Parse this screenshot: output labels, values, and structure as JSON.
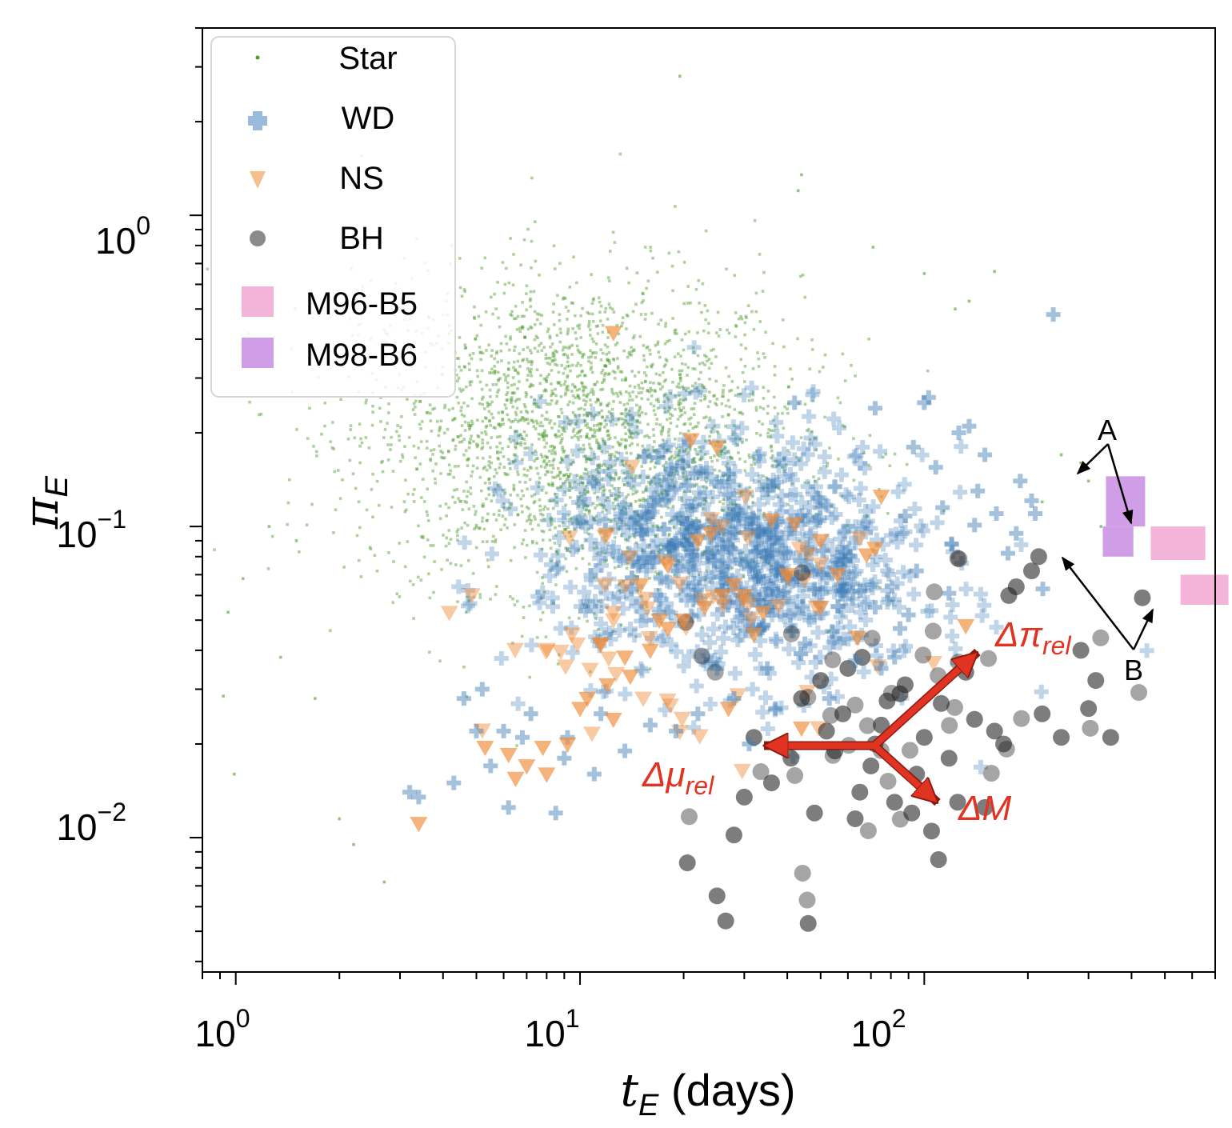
{
  "chart_data": {
    "type": "scatter",
    "xlabel_main": "t",
    "xlabel_sub": "E",
    "xlabel_unit": " (days)",
    "ylabel_main": "π",
    "ylabel_sub": "E",
    "x_scale": "log",
    "y_scale": "log",
    "xlim": [
      0.8,
      700
    ],
    "ylim": [
      0.0037,
      4.0
    ],
    "x_ticks": [
      {
        "base": "10",
        "exp": "0",
        "value": 1
      },
      {
        "base": "10",
        "exp": "1",
        "value": 10
      },
      {
        "base": "10",
        "exp": "2",
        "value": 100
      }
    ],
    "y_ticks": [
      {
        "base": "10",
        "exp": "0",
        "value": 1
      },
      {
        "base": "10",
        "exp": "−1",
        "value": 0.1
      },
      {
        "base": "10",
        "exp": "−2",
        "value": 0.01
      }
    ],
    "legend": {
      "position": "upper-left",
      "entries": [
        {
          "label": "Star",
          "marker": "point",
          "color": "#4c9a2a"
        },
        {
          "label": "WD",
          "marker": "plus",
          "color": "#9ab9dc"
        },
        {
          "label": "NS",
          "marker": "triangle-down",
          "color": "#f5c08c"
        },
        {
          "label": "BH",
          "marker": "circle",
          "color": "#8a8a8a"
        },
        {
          "label": "M96-B5",
          "marker": "square",
          "color": "#f4b3d9"
        },
        {
          "label": "M98-B6",
          "marker": "square",
          "color": "#cf9ee6"
        }
      ]
    },
    "populations": [
      {
        "name": "Star",
        "color": "#4c9a2a",
        "center_tE": 10,
        "center_piE": 0.2,
        "sigma_log_tE": 0.32,
        "sigma_log_piE": 0.25,
        "approx_count": 6000
      },
      {
        "name": "WD",
        "color": "#3a78b5",
        "center_tE": 28,
        "center_piE": 0.08,
        "sigma_log_tE": 0.28,
        "sigma_log_piE": 0.2,
        "approx_count": 1600
      },
      {
        "name": "NS",
        "color": "#f08a36",
        "center_tE": 20,
        "center_piE": 0.05,
        "sigma_log_tE": 0.3,
        "sigma_log_piE": 0.2,
        "approx_count": 150
      },
      {
        "name": "BH",
        "color": "#202020",
        "center_tE": 80,
        "center_piE": 0.022,
        "sigma_log_tE": 0.28,
        "sigma_log_piE": 0.25,
        "approx_count": 200
      }
    ],
    "series": [
      {
        "name": "BH",
        "points": [
          [
            20.5,
            0.0083
          ],
          [
            25,
            0.0065
          ],
          [
            26.5,
            0.0054
          ],
          [
            46,
            0.0053
          ],
          [
            28,
            0.0102
          ],
          [
            30,
            0.0135
          ],
          [
            32,
            0.021
          ],
          [
            36,
            0.015
          ],
          [
            41,
            0.018
          ],
          [
            44,
            0.028
          ],
          [
            48,
            0.012
          ],
          [
            50,
            0.032
          ],
          [
            55,
            0.019
          ],
          [
            58,
            0.025
          ],
          [
            63,
            0.0115
          ],
          [
            66,
            0.038
          ],
          [
            70,
            0.017
          ],
          [
            75,
            0.023
          ],
          [
            78,
            0.0275
          ],
          [
            82,
            0.013
          ],
          [
            88,
            0.031
          ],
          [
            95,
            0.016
          ],
          [
            100,
            0.021
          ],
          [
            105,
            0.0105
          ],
          [
            110,
            0.0085
          ],
          [
            112,
            0.027
          ],
          [
            118,
            0.018
          ],
          [
            125,
            0.013
          ],
          [
            132,
            0.034
          ],
          [
            140,
            0.024
          ],
          [
            150,
            0.0125
          ],
          [
            160,
            0.022
          ],
          [
            170,
            0.02
          ],
          [
            176,
            0.06
          ],
          [
            185,
            0.064
          ],
          [
            205,
            0.072
          ],
          [
            215,
            0.08
          ],
          [
            220,
            0.025
          ],
          [
            250,
            0.021
          ],
          [
            285,
            0.04
          ],
          [
            300,
            0.026
          ],
          [
            315,
            0.032
          ],
          [
            348,
            0.021
          ],
          [
            430,
            0.059
          ],
          [
            60,
            0.035
          ],
          [
            85,
            0.029
          ],
          [
            72,
            0.02
          ],
          [
            92,
            0.012
          ],
          [
            65,
            0.014
          ],
          [
            52,
            0.022
          ]
        ]
      },
      {
        "name": "WD",
        "points": [
          [
            3.2,
            0.014
          ],
          [
            3.4,
            0.0135
          ],
          [
            4.3,
            0.015
          ],
          [
            5.0,
            0.022
          ],
          [
            5.5,
            0.017
          ],
          [
            6.2,
            0.0125
          ],
          [
            8.5,
            0.012
          ],
          [
            6.8,
            0.021
          ],
          [
            9.0,
            0.018
          ],
          [
            11.5,
            0.025
          ],
          [
            13.5,
            0.019
          ],
          [
            16,
            0.023
          ],
          [
            19,
            0.022
          ],
          [
            22,
            0.025
          ],
          [
            31,
            0.02
          ],
          [
            37,
            0.026
          ],
          [
            45,
            0.042
          ],
          [
            54,
            0.046
          ],
          [
            63,
            0.037
          ],
          [
            72,
            0.055
          ],
          [
            82,
            0.038
          ],
          [
            90,
            0.052
          ],
          [
            93,
            0.18
          ],
          [
            100,
            0.25
          ],
          [
            108,
            0.155
          ],
          [
            113,
            0.115
          ],
          [
            120,
            0.088
          ],
          [
            126,
            0.2
          ],
          [
            135,
            0.21
          ],
          [
            143,
            0.13
          ],
          [
            150,
            0.17
          ],
          [
            162,
            0.11
          ],
          [
            175,
            0.082
          ],
          [
            185,
            0.095
          ],
          [
            190,
            0.14
          ],
          [
            210,
            0.11
          ],
          [
            221,
            0.063
          ],
          [
            237,
            0.48
          ],
          [
            205,
            0.121
          ],
          [
            140,
            0.101
          ],
          [
            118,
            0.061
          ],
          [
            85,
            0.047
          ],
          [
            95,
            0.072
          ],
          [
            75,
            0.035
          ],
          [
            65,
            0.062
          ],
          [
            48,
            0.063
          ],
          [
            42,
            0.25
          ],
          [
            72,
            0.24
          ],
          [
            103,
            0.26
          ],
          [
            35,
            0.035
          ],
          [
            28,
            0.028
          ],
          [
            25,
            0.035
          ],
          [
            7.2,
            0.025
          ],
          [
            9.2,
            0.021
          ],
          [
            11,
            0.016
          ],
          [
            4.6,
            0.028
          ],
          [
            5.2,
            0.03
          ],
          [
            6.0,
            0.022
          ],
          [
            53,
            0.028
          ],
          [
            88,
            0.108
          ]
        ]
      },
      {
        "name": "NS",
        "points": [
          [
            3.4,
            0.0111
          ],
          [
            5.3,
            0.0195
          ],
          [
            6.2,
            0.0185
          ],
          [
            6.5,
            0.0155
          ],
          [
            7.0,
            0.017
          ],
          [
            7.8,
            0.0195
          ],
          [
            8.0,
            0.016
          ],
          [
            9.2,
            0.02
          ],
          [
            10,
            0.026
          ],
          [
            10.5,
            0.028
          ],
          [
            11.5,
            0.042
          ],
          [
            12,
            0.031
          ],
          [
            12.5,
            0.024
          ],
          [
            14,
            0.033
          ],
          [
            16,
            0.04
          ],
          [
            18,
            0.047
          ],
          [
            20,
            0.05
          ],
          [
            21,
            0.19
          ],
          [
            23,
            0.055
          ],
          [
            25,
            0.18
          ],
          [
            27,
            0.026
          ],
          [
            28,
            0.065
          ],
          [
            30,
            0.06
          ],
          [
            34,
            0.053
          ],
          [
            36,
            0.105
          ],
          [
            40,
            0.07
          ],
          [
            44,
            0.0225
          ],
          [
            50,
            0.055
          ],
          [
            56,
            0.07
          ],
          [
            64,
            0.044
          ],
          [
            68,
            0.081
          ],
          [
            72,
            0.085
          ],
          [
            75,
            0.125
          ],
          [
            12.5,
            0.42
          ],
          [
            18,
            0.075
          ],
          [
            22,
            0.09
          ],
          [
            26,
            0.06
          ],
          [
            15,
            0.065
          ],
          [
            17,
            0.05
          ],
          [
            13.5,
            0.038
          ],
          [
            132,
            0.048
          ],
          [
            50,
            0.09
          ],
          [
            42,
            0.102
          ],
          [
            24,
            0.095
          ],
          [
            32,
            0.045
          ]
        ]
      },
      {
        "name": "Star",
        "points": [
          [
            0.95,
            0.053
          ],
          [
            0.92,
            0.0285
          ],
          [
            0.99,
            0.016
          ],
          [
            1.35,
            0.038
          ],
          [
            1.7,
            0.028
          ],
          [
            2.2,
            0.0095
          ],
          [
            2.7,
            0.0072
          ],
          [
            1.05,
            0.068
          ],
          [
            19.5,
            2.8
          ],
          [
            44,
            1.35
          ],
          [
            43,
            1.2
          ],
          [
            71,
            0.79
          ],
          [
            100,
            0.65
          ],
          [
            123,
            0.5
          ],
          [
            135,
            0.53
          ],
          [
            160,
            0.66
          ],
          [
            220,
            0.12
          ],
          [
            250,
            0.17
          ],
          [
            285,
            0.16
          ],
          [
            300,
            0.14
          ],
          [
            326,
            0.1
          ],
          [
            1.25,
            0.1
          ],
          [
            1.5,
            0.09
          ],
          [
            2.0,
            0.0115
          ]
        ]
      },
      {
        "name": "M96-B5",
        "boxes": [
          {
            "tE_range": [
              455,
              655
            ],
            "piE_range": [
              0.078,
              0.1
            ]
          },
          {
            "tE_range": [
              555,
              765
            ],
            "piE_range": [
              0.056,
              0.07
            ]
          }
        ]
      },
      {
        "name": "M98-B6",
        "boxes": [
          {
            "tE_range": [
              337,
              438
            ],
            "piE_range": [
              0.1,
              0.145
            ]
          },
          {
            "tE_range": [
              330,
              405
            ],
            "piE_range": [
              0.08,
              0.1
            ]
          }
        ]
      }
    ],
    "annotations": [
      {
        "label": "Δπ",
        "sub": "rel",
        "color": "#e03322"
      },
      {
        "label": "Δμ",
        "sub": "rel",
        "color": "#e03322"
      },
      {
        "label": "ΔM",
        "sub": "",
        "color": "#e03322"
      },
      {
        "label": "A",
        "sub": "",
        "color": "#000000"
      },
      {
        "label": "B",
        "sub": "",
        "color": "#000000"
      }
    ]
  }
}
